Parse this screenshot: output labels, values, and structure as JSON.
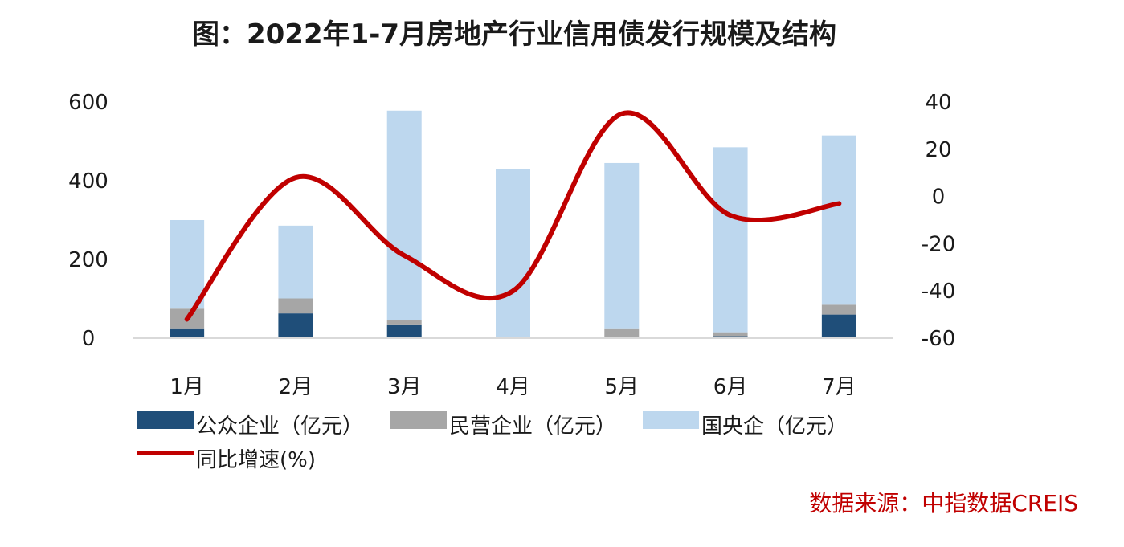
{
  "chart_data": {
    "type": "bar",
    "title": "图：2022年1-7月房地产行业信用债发行规模及结构",
    "categories": [
      "1月",
      "2月",
      "3月",
      "4月",
      "5月",
      "6月",
      "7月"
    ],
    "stacked": true,
    "series": [
      {
        "name": "公众企业（亿元）",
        "kind": "bar",
        "color": "#1f4e79",
        "values": [
          25,
          63,
          35,
          0,
          0,
          5,
          60
        ]
      },
      {
        "name": "民营企业（亿元）",
        "kind": "bar",
        "color": "#a6a6a6",
        "values": [
          50,
          38,
          10,
          0,
          25,
          10,
          25
        ]
      },
      {
        "name": "国央企（亿元）",
        "kind": "bar",
        "color": "#bdd7ee",
        "values": [
          225,
          185,
          533,
          430,
          420,
          470,
          430
        ]
      },
      {
        "name": "同比增速(%)",
        "kind": "line",
        "axis": "right",
        "color": "#c00000",
        "values": [
          -52,
          8,
          -25,
          -40,
          35,
          -8,
          -3
        ]
      }
    ],
    "y_left": {
      "min": 0,
      "max": 600,
      "ticks": [
        "0",
        "200",
        "400",
        "600"
      ]
    },
    "y_right": {
      "min": -60,
      "max": 40,
      "ticks": [
        "-60",
        "-40",
        "-20",
        "0",
        "20",
        "40"
      ]
    },
    "source": "数据来源：中指数据CREIS"
  }
}
